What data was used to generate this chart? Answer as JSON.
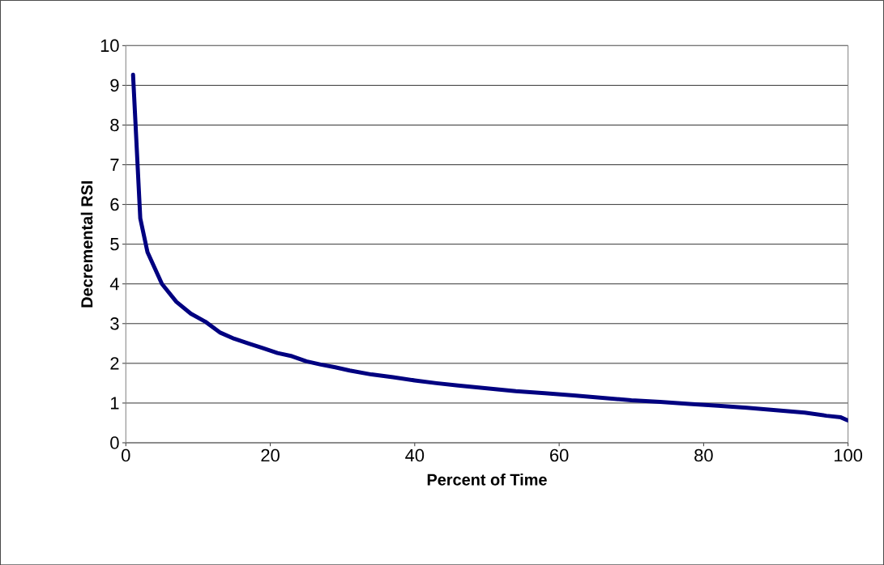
{
  "chart_data": {
    "type": "line",
    "xlabel": "Percent of Time",
    "ylabel": "Decremental RSI",
    "x": [
      1,
      2,
      3,
      5,
      7,
      9,
      11,
      13,
      15,
      17,
      19,
      21,
      23,
      25,
      27,
      29,
      31,
      34,
      37,
      40,
      43,
      46,
      50,
      54,
      58,
      62,
      66,
      70,
      74,
      78,
      82,
      86,
      90,
      94,
      97,
      99,
      100
    ],
    "series": [
      {
        "color": "#000080",
        "values": [
          9.27,
          5.65,
          4.8,
          4.0,
          3.55,
          3.25,
          3.05,
          2.78,
          2.62,
          2.5,
          2.38,
          2.26,
          2.18,
          2.05,
          1.97,
          1.9,
          1.82,
          1.72,
          1.65,
          1.57,
          1.5,
          1.44,
          1.37,
          1.3,
          1.25,
          1.19,
          1.13,
          1.07,
          1.03,
          0.98,
          0.93,
          0.88,
          0.82,
          0.76,
          0.68,
          0.64,
          0.56
        ]
      }
    ],
    "xlim": [
      0,
      100
    ],
    "ylim": [
      0,
      10
    ],
    "xticks": [
      0,
      20,
      40,
      60,
      80,
      100
    ],
    "yticks": [
      0,
      1,
      2,
      3,
      4,
      5,
      6,
      7,
      8,
      9,
      10
    ],
    "grid": "y",
    "marker": "none",
    "line_style": "solid"
  }
}
